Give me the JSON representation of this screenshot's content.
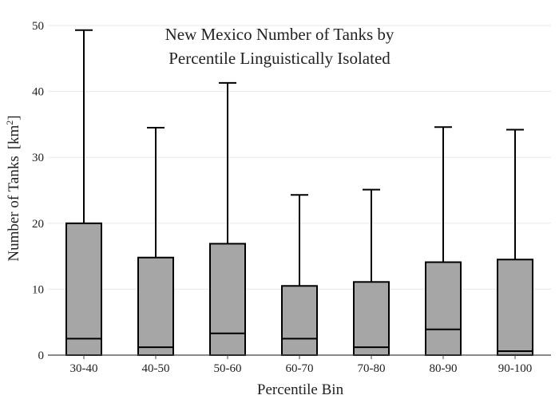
{
  "chart_data": {
    "type": "box",
    "title_line1": "New Mexico Number of Tanks by",
    "title_line2": "Percentile Linguistically Isolated",
    "xlabel": "Percentile Bin",
    "ylabel": "Number of Tanks",
    "ylabel_unit": "[km",
    "ylabel_unit_sup": "2",
    "ylabel_unit_close": "]",
    "ylim": [
      0,
      50
    ],
    "yticks": [
      0,
      10,
      20,
      30,
      40,
      50
    ],
    "grid": true,
    "box_color": "#a6a6a6",
    "categories": [
      "30-40",
      "40-50",
      "50-60",
      "60-70",
      "70-80",
      "80-90",
      "90-100"
    ],
    "boxes": [
      {
        "category": "30-40",
        "min": 0,
        "q1": 0,
        "median": 2.5,
        "q3": 20.0,
        "whisker_high": 49.3
      },
      {
        "category": "40-50",
        "min": 0,
        "q1": 0,
        "median": 1.2,
        "q3": 14.8,
        "whisker_high": 34.5
      },
      {
        "category": "50-60",
        "min": 0,
        "q1": 0,
        "median": 3.3,
        "q3": 16.9,
        "whisker_high": 41.3
      },
      {
        "category": "60-70",
        "min": 0,
        "q1": 0,
        "median": 2.5,
        "q3": 10.5,
        "whisker_high": 24.3
      },
      {
        "category": "70-80",
        "min": 0,
        "q1": 0,
        "median": 1.2,
        "q3": 11.1,
        "whisker_high": 25.1
      },
      {
        "category": "80-90",
        "min": 0,
        "q1": 0,
        "median": 3.9,
        "q3": 14.1,
        "whisker_high": 34.6
      },
      {
        "category": "90-100",
        "min": 0,
        "q1": 0,
        "median": 0.6,
        "q3": 14.5,
        "whisker_high": 34.2
      }
    ]
  }
}
